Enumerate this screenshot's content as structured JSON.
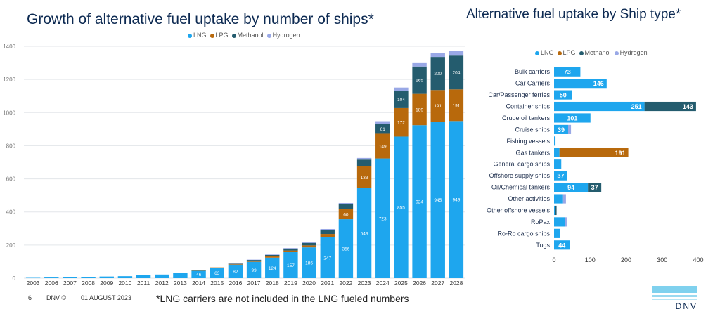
{
  "colors": {
    "LNG": "#1ea6ee",
    "LPG": "#b8690c",
    "Methanol": "#245c6e",
    "Hydrogen": "#99a8e6"
  },
  "chart_data": [
    {
      "type": "bar",
      "stacked": true,
      "title": "Growth of alternative fuel uptake by number of ships*",
      "legend_position": "top",
      "categories": [
        "2003",
        "2006",
        "2007",
        "2008",
        "2009",
        "2010",
        "2011",
        "2012",
        "2013",
        "2014",
        "2015",
        "2016",
        "2017",
        "2018",
        "2019",
        "2020",
        "2021",
        "2022",
        "2023",
        "2024",
        "2025",
        "2026",
        "2027",
        "2028"
      ],
      "ylim": [
        0,
        1400
      ],
      "yticks": [
        0,
        200,
        400,
        600,
        800,
        1000,
        1200,
        1400
      ],
      "series": [
        {
          "name": "LNG",
          "values": [
            2,
            4,
            6,
            8,
            10,
            12,
            17,
            22,
            32,
            46,
            63,
            82,
            99,
            124,
            157,
            186,
            247,
            356,
            543,
            723,
            855,
            924,
            945,
            949
          ],
          "labels": [
            null,
            null,
            null,
            null,
            null,
            null,
            null,
            null,
            null,
            "46",
            "63",
            "82",
            "99",
            "124",
            "157",
            "186",
            "247",
            "356",
            "543",
            "723",
            "855",
            "924",
            "945",
            "949"
          ]
        },
        {
          "name": "LPG",
          "values": [
            0,
            0,
            0,
            0,
            0,
            0,
            0,
            0,
            1,
            1,
            2,
            4,
            6,
            8,
            10,
            12,
            20,
            60,
            133,
            149,
            172,
            189,
            191,
            191
          ],
          "labels": [
            null,
            null,
            null,
            null,
            null,
            null,
            null,
            null,
            null,
            null,
            null,
            null,
            null,
            null,
            null,
            null,
            null,
            "60",
            "133",
            "149",
            "172",
            "189",
            "191",
            "191"
          ]
        },
        {
          "name": "Methanol",
          "values": [
            0,
            0,
            0,
            0,
            0,
            0,
            0,
            0,
            0,
            0,
            0,
            2,
            5,
            8,
            12,
            15,
            25,
            30,
            40,
            61,
            104,
            165,
            200,
            204
          ],
          "labels": [
            null,
            null,
            null,
            null,
            null,
            null,
            null,
            null,
            null,
            null,
            null,
            null,
            null,
            null,
            null,
            null,
            null,
            null,
            null,
            "61",
            "104",
            "165",
            "200",
            "204"
          ]
        },
        {
          "name": "Hydrogen",
          "values": [
            0,
            0,
            0,
            0,
            0,
            0,
            0,
            0,
            0,
            0,
            0,
            2,
            2,
            3,
            3,
            5,
            5,
            8,
            10,
            15,
            20,
            25,
            25,
            28
          ],
          "labels": []
        }
      ]
    },
    {
      "type": "bar",
      "orientation": "horizontal",
      "stacked": true,
      "title": "Alternative fuel uptake by Ship type*",
      "legend_position": "top",
      "categories": [
        "Bulk carriers",
        "Car Carriers",
        "Car/Passenger ferries",
        "Container ships",
        "Crude oil tankers",
        "Cruise ships",
        "Fishing vessels",
        "Gas tankers",
        "General cargo ships",
        "Offshore supply ships",
        "Oil/Chemical tankers",
        "Other activities",
        "Other offshore vessels",
        "RoPax",
        "Ro-Ro cargo ships",
        "Tugs"
      ],
      "xlim": [
        0,
        400
      ],
      "xticks": [
        0,
        100,
        200,
        300,
        400
      ],
      "series": [
        {
          "name": "LNG",
          "values": [
            73,
            146,
            50,
            251,
            101,
            39,
            4,
            15,
            20,
            37,
            94,
            25,
            2,
            30,
            17,
            44
          ],
          "labels": [
            "73",
            "146",
            "50",
            "251",
            "101",
            "39",
            null,
            null,
            null,
            "37",
            "94",
            null,
            null,
            null,
            null,
            "44"
          ]
        },
        {
          "name": "LPG",
          "values": [
            0,
            0,
            0,
            0,
            0,
            0,
            0,
            191,
            0,
            0,
            0,
            0,
            0,
            0,
            0,
            0
          ],
          "labels": [
            null,
            null,
            null,
            null,
            null,
            null,
            null,
            "191",
            null,
            null,
            null,
            null,
            null,
            null,
            null,
            null
          ]
        },
        {
          "name": "Methanol",
          "values": [
            0,
            0,
            0,
            143,
            0,
            0,
            0,
            0,
            0,
            0,
            37,
            0,
            5,
            0,
            0,
            0
          ],
          "labels": [
            null,
            null,
            null,
            "143",
            null,
            null,
            null,
            null,
            null,
            null,
            "37",
            null,
            null,
            null,
            null,
            null
          ]
        },
        {
          "name": "Hydrogen",
          "values": [
            0,
            0,
            0,
            0,
            0,
            8,
            0,
            0,
            0,
            0,
            0,
            8,
            0,
            5,
            0,
            0
          ],
          "labels": []
        }
      ]
    }
  ],
  "legend": {
    "items": [
      "LNG",
      "LPG",
      "Methanol",
      "Hydrogen"
    ]
  },
  "footer": {
    "page": "6",
    "brand": "DNV ©",
    "date": "01 AUGUST 2023",
    "footnote": "*LNG carriers are not included in the LNG fueled numbers",
    "logo_text": "DNV"
  }
}
